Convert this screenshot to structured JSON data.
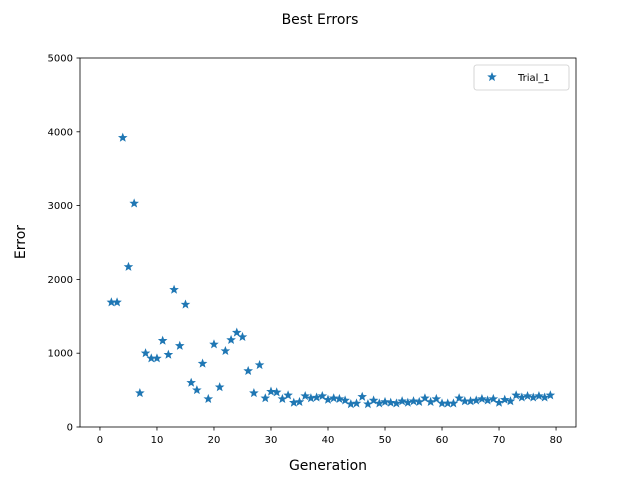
{
  "chart_data": {
    "type": "scatter",
    "title": "Best Errors",
    "xlabel": "Generation",
    "ylabel": "Error",
    "xlim": [
      -3.5,
      83.5
    ],
    "ylim": [
      0,
      5000
    ],
    "xticks": [
      0,
      10,
      20,
      30,
      40,
      50,
      60,
      70,
      80
    ],
    "yticks": [
      0,
      1000,
      2000,
      3000,
      4000,
      5000
    ],
    "grid": false,
    "legend_position": "top-right",
    "marker": "star",
    "series": [
      {
        "name": "Trial_1",
        "color": "#1f77b4",
        "x": [
          2,
          3,
          4,
          5,
          6,
          7,
          8,
          9,
          10,
          11,
          12,
          13,
          14,
          15,
          16,
          17,
          18,
          19,
          20,
          21,
          22,
          23,
          24,
          25,
          26,
          27,
          28,
          29,
          30,
          31,
          32,
          33,
          34,
          35,
          36,
          37,
          38,
          39,
          40,
          41,
          42,
          43,
          44,
          45,
          46,
          47,
          48,
          49,
          50,
          51,
          52,
          53,
          54,
          55,
          56,
          57,
          58,
          59,
          60,
          61,
          62,
          63,
          64,
          65,
          66,
          67,
          68,
          69,
          70,
          71,
          72,
          73,
          74,
          75,
          76,
          77,
          78,
          79
        ],
        "y": [
          1690,
          1690,
          3920,
          2170,
          3030,
          460,
          1000,
          930,
          930,
          1170,
          980,
          1860,
          1100,
          1660,
          600,
          500,
          860,
          380,
          1120,
          540,
          1030,
          1180,
          1280,
          1220,
          760,
          460,
          840,
          390,
          480,
          470,
          380,
          430,
          330,
          340,
          420,
          390,
          400,
          420,
          370,
          390,
          380,
          360,
          310,
          320,
          410,
          310,
          360,
          320,
          340,
          330,
          320,
          350,
          330,
          350,
          340,
          390,
          340,
          380,
          320,
          320,
          320,
          390,
          350,
          350,
          360,
          380,
          360,
          380,
          330,
          370,
          350,
          430,
          400,
          420,
          400,
          420,
          400,
          430
        ]
      }
    ]
  }
}
